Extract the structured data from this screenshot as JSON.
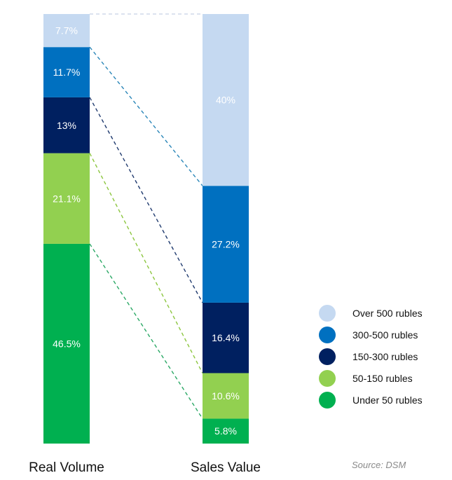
{
  "chart_data": {
    "type": "bar",
    "stacked": true,
    "normalized": true,
    "categories": [
      "Real Volume",
      "Sales Value"
    ],
    "series": [
      {
        "name": "Under 50 rubles",
        "values": [
          46.5,
          5.8
        ],
        "labels": [
          "46.5%",
          "5.8%"
        ],
        "color": "#00b050"
      },
      {
        "name": "50-150 rubles",
        "values": [
          21.1,
          10.6
        ],
        "labels": [
          "21.1%",
          "10.6%"
        ],
        "color": "#92d050"
      },
      {
        "name": "150-300 rubles",
        "values": [
          13,
          16.4
        ],
        "labels": [
          "13%",
          "16.4%"
        ],
        "color": "#002060"
      },
      {
        "name": "300-500 rubles",
        "values": [
          11.7,
          27.2
        ],
        "labels": [
          "11.7%",
          "27.2%"
        ],
        "color": "#0070c0"
      },
      {
        "name": "Over 500 rubles",
        "values": [
          7.7,
          40
        ],
        "labels": [
          "7.7%",
          "40%"
        ],
        "color": "#c5d9f1"
      }
    ],
    "connector_line_colors": [
      "#cfd9ea",
      "#2a86b8",
      "#1f3a6e",
      "#8cc63f",
      "#2aa865"
    ],
    "legend": {
      "position": "right",
      "order": [
        "Over 500 rubles",
        "300-500 rubles",
        "150-300 rubles",
        "50-150 rubles",
        "Under 50 rubles"
      ]
    },
    "source": "Source: DSM",
    "grid": false
  }
}
